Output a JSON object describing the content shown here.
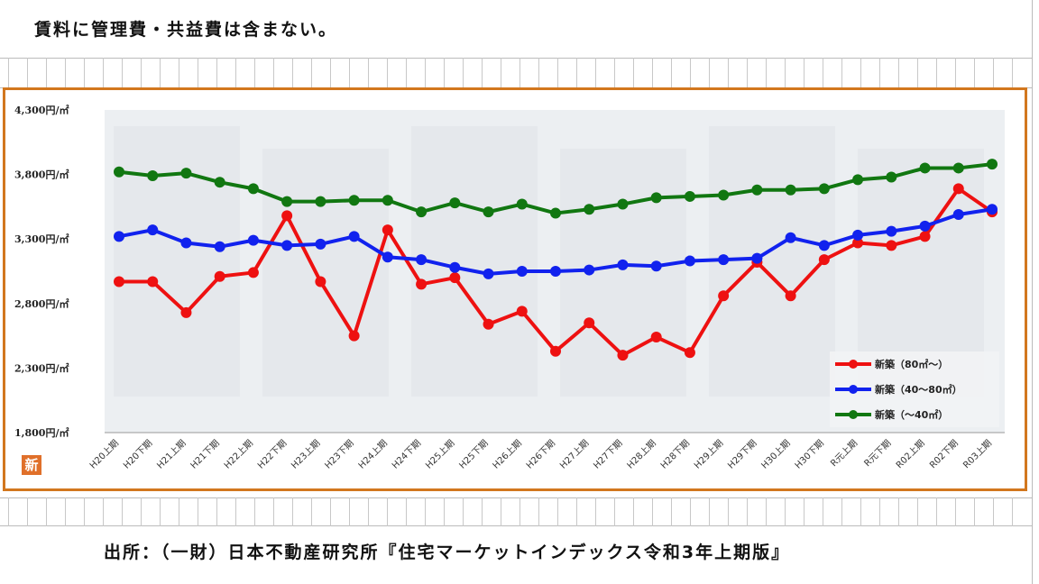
{
  "header": {
    "note": "賃料に管理費・共益費は含まない。"
  },
  "footer": {
    "source": "出所：（一財）日本不動産研究所『住宅マーケットインデックス令和3年上期版』"
  },
  "badge": {
    "label": "新"
  },
  "chart_data": {
    "type": "line",
    "categories": [
      "H20上期",
      "H20下期",
      "H21上期",
      "H21下期",
      "H22上期",
      "H22下期",
      "H23上期",
      "H23下期",
      "H24上期",
      "H24下期",
      "H25上期",
      "H25下期",
      "H26上期",
      "H26下期",
      "H27上期",
      "H27下期",
      "H28上期",
      "H28下期",
      "H29上期",
      "H29下期",
      "H30上期",
      "H30下期",
      "R元上期",
      "R元下期",
      "R02上期",
      "R02下期",
      "R03上期"
    ],
    "yticks": [
      "4,300円/㎡",
      "3,800円/㎡",
      "3,300円/㎡",
      "2,800円/㎡",
      "2,300円/㎡",
      "1,800円/㎡"
    ],
    "ylim": [
      1800,
      4300
    ],
    "grid": false,
    "legend_position": "bottom-right",
    "series": [
      {
        "name": "新築（80㎡～）",
        "color": "#ee1111",
        "values": [
          2970,
          2970,
          2730,
          3010,
          3040,
          3480,
          2970,
          2550,
          3370,
          2950,
          3000,
          2640,
          2740,
          2430,
          2650,
          2400,
          2540,
          2420,
          2860,
          3120,
          2860,
          3140,
          3270,
          3250,
          3320,
          3690,
          3510
        ]
      },
      {
        "name": "新築（40～80㎡）",
        "color": "#1122ee",
        "values": [
          3320,
          3370,
          3270,
          3240,
          3290,
          3250,
          3260,
          3320,
          3160,
          3140,
          3080,
          3030,
          3050,
          3050,
          3060,
          3100,
          3090,
          3130,
          3140,
          3150,
          3310,
          3250,
          3330,
          3360,
          3400,
          3490,
          3530
        ]
      },
      {
        "name": "新築（～40㎡）",
        "color": "#117711",
        "values": [
          3820,
          3790,
          3810,
          3740,
          3690,
          3590,
          3590,
          3600,
          3600,
          3510,
          3580,
          3510,
          3570,
          3500,
          3530,
          3570,
          3620,
          3630,
          3640,
          3680,
          3680,
          3690,
          3760,
          3780,
          3850,
          3850,
          3880
        ]
      }
    ]
  }
}
